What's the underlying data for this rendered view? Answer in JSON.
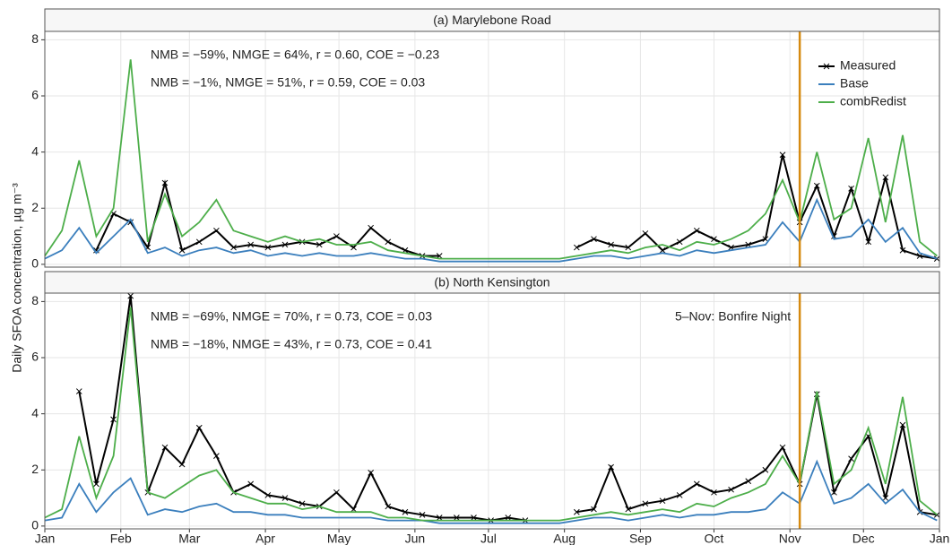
{
  "ylabel": "Daily SFOA concentration,  µg m⁻³",
  "chart_data": [
    {
      "type": "line",
      "title": "(a) Marylebone Road",
      "x": [
        0,
        7,
        14,
        21,
        28,
        35,
        42,
        49,
        56,
        63,
        70,
        77,
        84,
        91,
        98,
        105,
        112,
        119,
        126,
        133,
        140,
        147,
        154,
        161,
        168,
        175,
        182,
        189,
        196,
        203,
        210,
        217,
        224,
        231,
        238,
        245,
        252,
        259,
        266,
        273,
        280,
        287,
        294,
        301,
        308,
        315,
        322,
        329,
        336,
        343,
        350,
        357,
        364
      ],
      "xlim": [
        0,
        365
      ],
      "xticks": [
        {
          "value": 0,
          "label": "Jan"
        },
        {
          "value": 31,
          "label": "Feb"
        },
        {
          "value": 59,
          "label": "Mar"
        },
        {
          "value": 90,
          "label": "Apr"
        },
        {
          "value": 120,
          "label": "May"
        },
        {
          "value": 151,
          "label": "Jun"
        },
        {
          "value": 181,
          "label": "Jul"
        },
        {
          "value": 212,
          "label": "Aug"
        },
        {
          "value": 243,
          "label": "Sep"
        },
        {
          "value": 273,
          "label": "Oct"
        },
        {
          "value": 304,
          "label": "Nov"
        },
        {
          "value": 334,
          "label": "Dec"
        },
        {
          "value": 365,
          "label": "Jan"
        }
      ],
      "ylim": [
        -0.1,
        8.3
      ],
      "yticks": [
        0,
        2,
        4,
        6,
        8
      ],
      "grid": true,
      "legend": "top-right",
      "vline": {
        "x": 308,
        "color": "#d68a10"
      },
      "annotations": [
        {
          "text": "NMB = −59%, NMGE = 64%, r = 0.60, COE = −0.23",
          "color": "#3b7fbd"
        },
        {
          "text": "NMB = −1%, NMGE = 51%, r = 0.59, COE = 0.03",
          "color": "#4dae4a"
        }
      ],
      "series": [
        {
          "name": "Measured",
          "color": "#000000",
          "markers": true,
          "values": [
            null,
            null,
            null,
            0.5,
            1.8,
            1.5,
            0.6,
            2.9,
            0.5,
            0.8,
            1.2,
            0.6,
            0.7,
            0.6,
            0.7,
            0.8,
            0.7,
            1.0,
            0.6,
            1.3,
            0.8,
            0.5,
            0.3,
            0.3,
            null,
            null,
            null,
            null,
            null,
            null,
            null,
            0.6,
            0.9,
            0.7,
            0.6,
            1.1,
            0.5,
            0.8,
            1.2,
            0.9,
            0.6,
            0.7,
            0.9,
            3.9,
            1.5,
            2.8,
            1.0,
            2.7,
            0.8,
            3.1,
            0.5,
            0.3,
            0.2
          ]
        },
        {
          "name": "Base",
          "color": "#3b7fbd",
          "values": [
            0.2,
            0.5,
            1.3,
            0.4,
            1.0,
            1.6,
            0.4,
            0.6,
            0.3,
            0.5,
            0.6,
            0.4,
            0.5,
            0.3,
            0.4,
            0.3,
            0.4,
            0.3,
            0.3,
            0.4,
            0.3,
            0.2,
            0.2,
            0.1,
            0.1,
            0.1,
            0.1,
            0.1,
            0.1,
            0.1,
            0.1,
            0.2,
            0.3,
            0.3,
            0.2,
            0.3,
            0.4,
            0.3,
            0.5,
            0.4,
            0.5,
            0.6,
            0.7,
            1.5,
            0.8,
            2.3,
            0.9,
            1.0,
            1.6,
            0.8,
            1.3,
            0.4,
            0.2
          ]
        },
        {
          "name": "combRedist",
          "color": "#4dae4a",
          "values": [
            0.3,
            1.2,
            3.7,
            1.0,
            2.0,
            7.3,
            0.8,
            2.5,
            1.0,
            1.5,
            2.3,
            1.2,
            1.0,
            0.8,
            1.0,
            0.8,
            0.9,
            0.7,
            0.7,
            0.8,
            0.5,
            0.4,
            0.3,
            0.2,
            0.2,
            0.2,
            0.2,
            0.2,
            0.2,
            0.2,
            0.2,
            0.3,
            0.4,
            0.5,
            0.4,
            0.6,
            0.7,
            0.5,
            0.8,
            0.7,
            0.9,
            1.2,
            1.8,
            3.0,
            1.5,
            4.0,
            1.6,
            2.0,
            4.5,
            1.5,
            4.6,
            0.8,
            0.3
          ]
        }
      ]
    },
    {
      "type": "line",
      "title": "(b) North Kensington",
      "x": [
        0,
        7,
        14,
        21,
        28,
        35,
        42,
        49,
        56,
        63,
        70,
        77,
        84,
        91,
        98,
        105,
        112,
        119,
        126,
        133,
        140,
        147,
        154,
        161,
        168,
        175,
        182,
        189,
        196,
        203,
        210,
        217,
        224,
        231,
        238,
        245,
        252,
        259,
        266,
        273,
        280,
        287,
        294,
        301,
        308,
        315,
        322,
        329,
        336,
        343,
        350,
        357,
        364
      ],
      "xlim": [
        0,
        365
      ],
      "xticks": [
        {
          "value": 0,
          "label": "Jan"
        },
        {
          "value": 31,
          "label": "Feb"
        },
        {
          "value": 59,
          "label": "Mar"
        },
        {
          "value": 90,
          "label": "Apr"
        },
        {
          "value": 120,
          "label": "May"
        },
        {
          "value": 151,
          "label": "Jun"
        },
        {
          "value": 181,
          "label": "Jul"
        },
        {
          "value": 212,
          "label": "Aug"
        },
        {
          "value": 243,
          "label": "Sep"
        },
        {
          "value": 273,
          "label": "Oct"
        },
        {
          "value": 304,
          "label": "Nov"
        },
        {
          "value": 334,
          "label": "Dec"
        },
        {
          "value": 365,
          "label": "Jan"
        }
      ],
      "ylim": [
        -0.1,
        8.3
      ],
      "yticks": [
        0,
        2,
        4,
        6,
        8
      ],
      "grid": true,
      "vline": {
        "x": 308,
        "color": "#d68a10",
        "label": "5–Nov: Bonfire Night"
      },
      "annotations": [
        {
          "text": "NMB = −69%, NMGE = 70%, r = 0.73, COE = 0.03",
          "color": "#3b7fbd"
        },
        {
          "text": "NMB = −18%, NMGE = 43%, r = 0.73, COE = 0.41",
          "color": "#4dae4a"
        }
      ],
      "series": [
        {
          "name": "Measured",
          "color": "#000000",
          "markers": true,
          "values": [
            null,
            null,
            4.8,
            1.5,
            3.8,
            8.2,
            1.2,
            2.8,
            2.2,
            3.5,
            2.5,
            1.2,
            1.5,
            1.1,
            1.0,
            0.8,
            0.7,
            1.2,
            0.6,
            1.9,
            0.7,
            0.5,
            0.4,
            0.3,
            0.3,
            0.3,
            0.2,
            0.3,
            0.2,
            null,
            null,
            0.5,
            0.6,
            2.1,
            0.6,
            0.8,
            0.9,
            1.1,
            1.5,
            1.2,
            1.3,
            1.6,
            2.0,
            2.8,
            1.5,
            4.7,
            1.2,
            2.4,
            3.2,
            1.0,
            3.6,
            0.5,
            0.4
          ]
        },
        {
          "name": "Base",
          "color": "#3b7fbd",
          "values": [
            0.2,
            0.3,
            1.5,
            0.5,
            1.2,
            1.7,
            0.4,
            0.6,
            0.5,
            0.7,
            0.8,
            0.5,
            0.5,
            0.4,
            0.4,
            0.3,
            0.3,
            0.3,
            0.3,
            0.3,
            0.2,
            0.2,
            0.2,
            0.1,
            0.1,
            0.1,
            0.1,
            0.1,
            0.1,
            0.1,
            0.1,
            0.2,
            0.3,
            0.3,
            0.2,
            0.3,
            0.4,
            0.3,
            0.4,
            0.4,
            0.5,
            0.5,
            0.6,
            1.2,
            0.8,
            2.3,
            0.8,
            1.0,
            1.5,
            0.8,
            1.3,
            0.5,
            0.2
          ]
        },
        {
          "name": "combRedist",
          "color": "#4dae4a",
          "values": [
            0.3,
            0.6,
            3.2,
            1.0,
            2.5,
            7.8,
            1.2,
            1.0,
            1.4,
            1.8,
            2.0,
            1.2,
            1.0,
            0.8,
            0.8,
            0.6,
            0.7,
            0.5,
            0.5,
            0.5,
            0.3,
            0.3,
            0.2,
            0.2,
            0.2,
            0.2,
            0.2,
            0.2,
            0.2,
            0.2,
            0.2,
            0.3,
            0.4,
            0.5,
            0.4,
            0.5,
            0.6,
            0.5,
            0.8,
            0.7,
            1.0,
            1.2,
            1.5,
            2.5,
            1.5,
            4.8,
            1.5,
            2.0,
            3.5,
            1.5,
            4.6,
            0.9,
            0.4
          ]
        }
      ]
    }
  ]
}
